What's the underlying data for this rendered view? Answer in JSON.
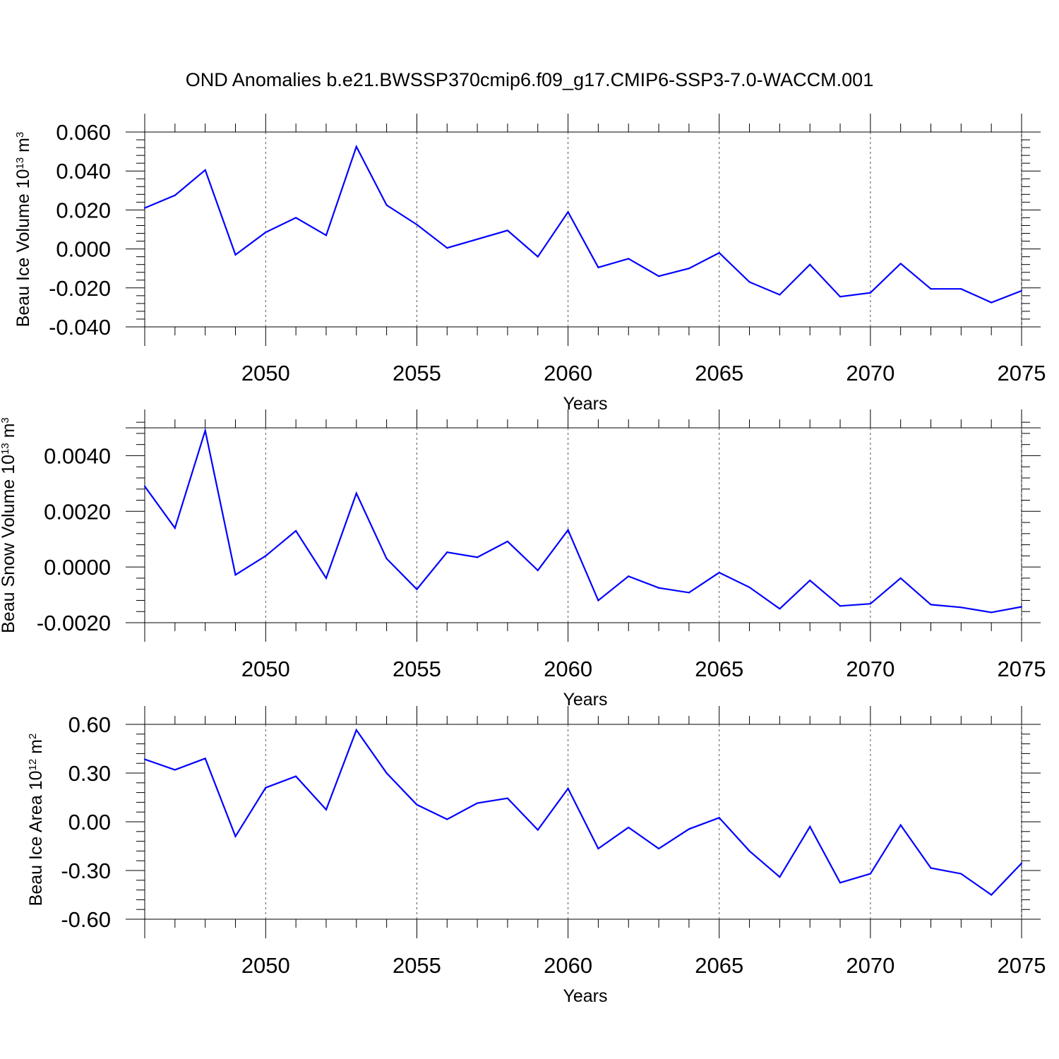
{
  "figure": {
    "title": "OND Anomalies b.e21.BWSSP370cmip6.f09_g17.CMIP6-SSP3-7.0-WACCM.001",
    "line_color": "#0000ff"
  },
  "chart_data": [
    {
      "type": "line",
      "ylabel": "Beau Ice Volume 10",
      "ylabel_exp": "13",
      "ylabel_unit": " m",
      "ylabel_unit_exp": "3",
      "xlabel": "Years",
      "xlim": [
        2046,
        2075
      ],
      "ylim": [
        -0.04,
        0.06
      ],
      "xticks": [
        2050,
        2055,
        2060,
        2065,
        2070,
        2075
      ],
      "yticks": [
        0.06,
        0.04,
        0.02,
        0.0,
        -0.02,
        -0.04
      ],
      "ytick_labels": [
        "0.060",
        "0.040",
        "0.020",
        "0.000",
        "-0.020",
        "-0.040"
      ],
      "grid": "vertical dashed at major x ticks",
      "series": [
        {
          "x": [
            2046,
            2047,
            2048,
            2049,
            2050,
            2051,
            2052,
            2053,
            2054,
            2055,
            2056,
            2057,
            2058,
            2059,
            2060,
            2061,
            2062,
            2063,
            2064,
            2065,
            2066,
            2067,
            2068,
            2069,
            2070,
            2071,
            2072,
            2073,
            2074,
            2075
          ],
          "values": [
            0.021,
            0.0275,
            0.0405,
            -0.003,
            0.0085,
            0.016,
            0.007,
            0.0525,
            0.0225,
            0.0125,
            0.0005,
            0.005,
            0.0095,
            -0.004,
            0.019,
            -0.0095,
            -0.005,
            -0.014,
            -0.01,
            -0.002,
            -0.017,
            -0.0235,
            -0.008,
            -0.0245,
            -0.0225,
            -0.0075,
            -0.0205,
            -0.0205,
            -0.0275,
            -0.0215
          ]
        }
      ]
    },
    {
      "type": "line",
      "ylabel": "Beau Snow Volume 10",
      "ylabel_exp": "13",
      "ylabel_unit": " m",
      "ylabel_unit_exp": "3",
      "xlabel": "Years",
      "xlim": [
        2046,
        2075
      ],
      "ylim": [
        -0.002,
        0.005
      ],
      "xticks": [
        2050,
        2055,
        2060,
        2065,
        2070,
        2075
      ],
      "yticks": [
        0.004,
        0.002,
        0.0,
        -0.002
      ],
      "ytick_labels": [
        "0.0040",
        "0.0020",
        "0.0000",
        "-0.0020"
      ],
      "grid": "vertical dashed at major x ticks",
      "series": [
        {
          "x": [
            2046,
            2047,
            2048,
            2049,
            2050,
            2051,
            2052,
            2053,
            2054,
            2055,
            2056,
            2057,
            2058,
            2059,
            2060,
            2061,
            2062,
            2063,
            2064,
            2065,
            2066,
            2067,
            2068,
            2069,
            2070,
            2071,
            2072,
            2073,
            2074,
            2075
          ],
          "values": [
            0.0029,
            0.0014,
            0.0049,
            -0.00028,
            0.0004,
            0.0013,
            -0.0004,
            0.00265,
            0.0003,
            -0.0008,
            0.00053,
            0.00035,
            0.00092,
            -0.00012,
            0.00133,
            -0.0012,
            -0.00033,
            -0.00075,
            -0.00092,
            -0.0002,
            -0.00073,
            -0.0015,
            -0.00048,
            -0.0014,
            -0.00132,
            -0.0004,
            -0.00135,
            -0.00145,
            -0.00163,
            -0.00143
          ]
        }
      ]
    },
    {
      "type": "line",
      "ylabel": "Beau Ice Area 10",
      "ylabel_exp": "12",
      "ylabel_unit": " m",
      "ylabel_unit_exp": "2",
      "xlabel": "Years",
      "xlim": [
        2046,
        2075
      ],
      "ylim": [
        -0.6,
        0.6
      ],
      "xticks": [
        2050,
        2055,
        2060,
        2065,
        2070,
        2075
      ],
      "yticks": [
        0.6,
        0.3,
        0.0,
        -0.3,
        -0.6
      ],
      "ytick_labels": [
        "0.60",
        "0.30",
        "0.00",
        "-0.30",
        "-0.60"
      ],
      "grid": "vertical dashed at major x ticks",
      "series": [
        {
          "x": [
            2046,
            2047,
            2048,
            2049,
            2050,
            2051,
            2052,
            2053,
            2054,
            2055,
            2056,
            2057,
            2058,
            2059,
            2060,
            2061,
            2062,
            2063,
            2064,
            2065,
            2066,
            2067,
            2068,
            2069,
            2070,
            2071,
            2072,
            2073,
            2074,
            2075
          ],
          "values": [
            0.385,
            0.32,
            0.39,
            -0.09,
            0.21,
            0.28,
            0.075,
            0.565,
            0.3,
            0.105,
            0.015,
            0.115,
            0.145,
            -0.05,
            0.205,
            -0.165,
            -0.035,
            -0.165,
            -0.045,
            0.025,
            -0.18,
            -0.34,
            -0.03,
            -0.375,
            -0.32,
            -0.02,
            -0.285,
            -0.32,
            -0.45,
            -0.255
          ]
        }
      ]
    }
  ]
}
